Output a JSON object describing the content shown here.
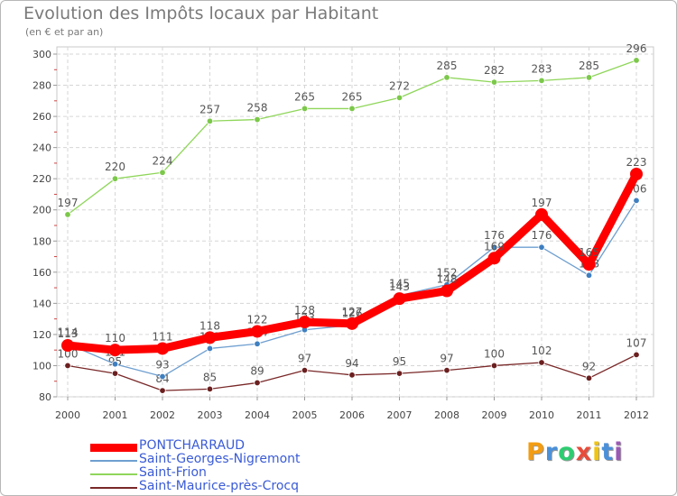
{
  "chart_data": {
    "type": "line",
    "title": "Evolution des Impôts locaux par Habitant",
    "subtitle": "(en € et par an)",
    "x": [
      "2000",
      "2001",
      "2002",
      "2003",
      "2004",
      "2005",
      "2006",
      "2007",
      "2008",
      "2009",
      "2010",
      "2011",
      "2012"
    ],
    "yticks": [
      "80",
      "100",
      "120",
      "140",
      "160",
      "180",
      "200",
      "220",
      "240",
      "260",
      "280",
      "300"
    ],
    "ylim": [
      80,
      300
    ],
    "series": [
      {
        "name": "Saint-Frion",
        "color": "#8fd65a",
        "marker": "#7cc84a",
        "values": [
          197,
          220,
          224,
          257,
          258,
          265,
          265,
          272,
          285,
          282,
          283,
          285,
          296
        ],
        "labels": [
          "197",
          "220",
          "224",
          "257",
          "258",
          "265",
          "265",
          "272",
          "285",
          "282",
          "283",
          "285",
          "296"
        ]
      },
      {
        "name": "Saint-Maurice-près-Crocq",
        "color": "#7a2828",
        "marker": "#6b1f1f",
        "values": [
          100,
          95,
          84,
          85,
          89,
          97,
          94,
          95,
          97,
          100,
          102,
          92,
          107
        ],
        "labels": [
          "100",
          "95",
          "84",
          "85",
          "89",
          "97",
          "94",
          "95",
          "97",
          "100",
          "102",
          "92",
          "107"
        ]
      },
      {
        "name": "Saint-Georges-Nigremont",
        "color": "#6f9fd0",
        "marker": "#3f7fc0",
        "values": [
          114,
          101,
          93,
          111,
          114,
          123,
          126,
          145,
          152,
          176,
          176,
          158,
          206
        ],
        "labels": [
          "114",
          "101",
          "93",
          "111",
          "114",
          "123",
          "126",
          "145",
          "152",
          "176",
          "176",
          "158",
          "206"
        ]
      },
      {
        "name": "PONTCHARRAUD",
        "color": "#ff0000",
        "marker": "#ff0000",
        "values": [
          113,
          110,
          111,
          118,
          122,
          128,
          127,
          143,
          148,
          169,
          197,
          165,
          223
        ],
        "labels": [
          "113",
          "110",
          "111",
          "118",
          "122",
          "128",
          "127",
          "143",
          "148",
          "169",
          "197",
          "165",
          "223"
        ]
      }
    ],
    "legend": [
      {
        "name": "PONTCHARRAUD",
        "color": "#ff0000"
      },
      {
        "name": "Saint-Georges-Nigremont",
        "color": "#6f9fd0"
      },
      {
        "name": "Saint-Frion",
        "color": "#8fd65a"
      },
      {
        "name": "Saint-Maurice-près-Crocq",
        "color": "#7a2828"
      }
    ]
  },
  "logo": {
    "letters": [
      "P",
      "r",
      "o",
      "x",
      "i",
      "t",
      "i"
    ],
    "colors": [
      "#f39c12",
      "#4a90d9",
      "#2ecc71",
      "#e74c3c",
      "#f1c40f",
      "#4a90d9",
      "#9b59b6"
    ]
  }
}
